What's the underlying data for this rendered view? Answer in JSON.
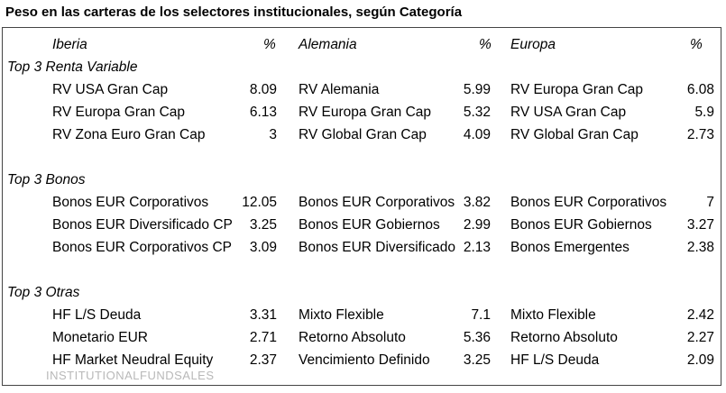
{
  "title": "Peso en las carteras de los selectores institucionales, según Categoría",
  "headers": {
    "col1": "Iberia",
    "pct1": "%",
    "col2": "Alemania",
    "pct2": "%",
    "col3": "Europa",
    "pct3": "%"
  },
  "sections": [
    {
      "label": "Top 3  Renta Variable",
      "rows": [
        {
          "n1": "RV USA Gran Cap",
          "v1": "8.09",
          "n2": "RV Alemania",
          "v2": "5.99",
          "n3": "RV Europa Gran Cap",
          "v3": "6.08"
        },
        {
          "n1": "RV Europa Gran Cap",
          "v1": "6.13",
          "n2": "RV Europa Gran Cap",
          "v2": "5.32",
          "n3": "RV USA Gran Cap",
          "v3": "5.9"
        },
        {
          "n1": "RV Zona Euro Gran Cap",
          "v1": "3",
          "n2": "RV Global Gran Cap",
          "v2": "4.09",
          "n3": "RV Global Gran Cap",
          "v3": "2.73"
        }
      ]
    },
    {
      "label": "Top 3  Bonos",
      "rows": [
        {
          "n1": "Bonos EUR Corporativos",
          "v1": "12.05",
          "n2": "Bonos EUR Corporativos",
          "v2": "3.82",
          "n3": "Bonos EUR Corporativos",
          "v3": "7"
        },
        {
          "n1": "Bonos EUR Diversificado CP",
          "v1": "3.25",
          "n2": "Bonos EUR Gobiernos",
          "v2": "2.99",
          "n3": "Bonos EUR Gobiernos",
          "v3": "3.27"
        },
        {
          "n1": "Bonos EUR Corporativos CP",
          "v1": "3.09",
          "n2": "Bonos EUR Diversificado",
          "v2": "2.13",
          "n3": "Bonos Emergentes",
          "v3": "2.38"
        }
      ]
    },
    {
      "label": "Top 3  Otras",
      "rows": [
        {
          "n1": "HF L/S Deuda",
          "v1": "3.31",
          "n2": "Mixto Flexible",
          "v2": "7.1",
          "n3": "Mixto Flexible",
          "v3": "2.42"
        },
        {
          "n1": "Monetario EUR",
          "v1": "2.71",
          "n2": "Retorno Absoluto",
          "v2": "5.36",
          "n3": "Retorno Absoluto",
          "v3": "2.27"
        },
        {
          "n1": "HF Market Neudral Equity",
          "v1": "2.37",
          "n2": "Vencimiento Definido",
          "v2": "3.25",
          "n3": "HF L/S Deuda",
          "v3": "2.09"
        }
      ]
    }
  ],
  "logo_text": "INSTITUTIONALFUNDSALES"
}
